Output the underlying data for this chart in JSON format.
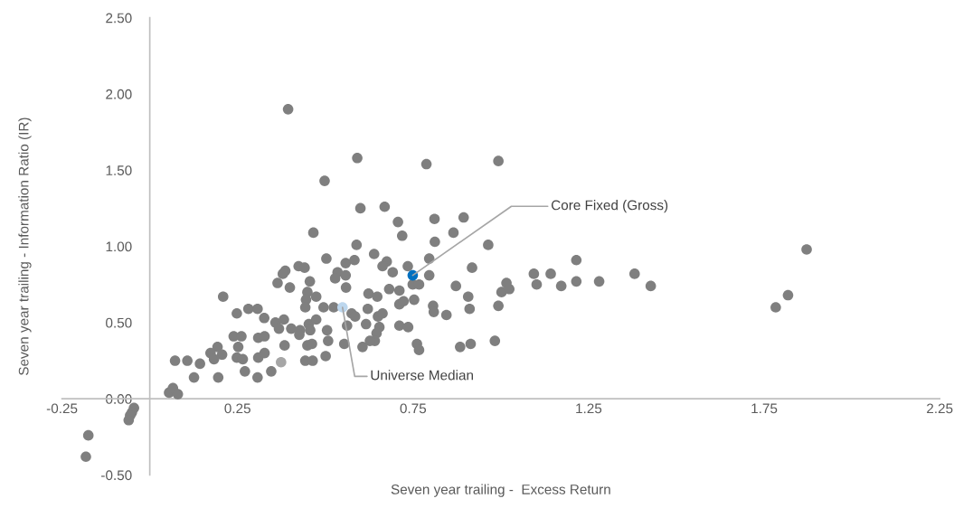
{
  "chart_data": {
    "type": "scatter",
    "xlabel": "Seven year trailing -  Excess Return",
    "ylabel": "Seven year trailing - Information Ratio (IR)",
    "marker": "circle",
    "xlim": [
      -0.25,
      2.25
    ],
    "ylim": [
      -0.5,
      2.5
    ],
    "xticks": [
      -0.25,
      0.25,
      0.75,
      1.25,
      1.75,
      2.25
    ],
    "yticks": [
      {
        "value": -0.5,
        "label": "-0.50"
      },
      {
        "value": 0,
        "label": "0.00"
      },
      {
        "value": 0.5,
        "label": "0.50"
      },
      {
        "value": 1,
        "label": "1.00"
      },
      {
        "value": 1.5,
        "label": "1.50"
      },
      {
        "value": 2,
        "label": "2.00"
      },
      {
        "value": 2.5,
        "label": "2.50"
      }
    ],
    "series": [
      {
        "color": "#7f7f7f",
        "x": [
          0.394,
          0.498,
          0.466,
          0.503,
          0.558,
          0.535,
          0.528,
          0.559,
          0.386,
          0.379,
          0.424,
          0.441,
          0.364,
          0.399,
          0.456,
          0.449,
          0.474,
          0.445,
          0.443,
          0.209,
          0.248,
          0.281,
          0.307,
          0.326,
          0.358,
          0.382,
          0.403,
          0.428,
          0.453,
          0.474,
          0.495,
          0.524,
          0.426,
          0.457,
          0.505,
          0.508,
          0.449,
          0.462,
          0.368,
          0.384,
          0.309,
          0.327,
          0.239,
          0.261,
          0.252,
          0.193,
          0.173,
          0.206,
          0.183,
          0.248,
          0.265,
          0.309,
          0.327,
          0.443,
          0.464,
          0.501,
          0.072,
          0.107,
          0.143,
          0.126,
          0.195,
          0.271,
          0.307,
          0.346,
          0.055,
          0.066,
          0.08,
          0.591,
          0.788,
          0.993,
          0.6,
          0.669,
          0.707,
          0.719,
          0.811,
          0.894,
          0.865,
          0.964,
          0.589,
          0.812,
          0.639,
          0.583,
          0.675,
          0.663,
          0.692,
          0.735,
          0.796,
          0.796,
          0.918,
          0.749,
          0.767,
          0.558,
          0.623,
          0.648,
          0.682,
          0.711,
          0.711,
          0.723,
          0.753,
          0.872,
          0.907,
          0.911,
          0.993,
          1.002,
          1.016,
          1.024,
          1.094,
          1.102,
          0.807,
          0.809,
          0.845,
          0.621,
          0.575,
          0.585,
          0.562,
          0.616,
          0.65,
          0.663,
          0.654,
          0.646,
          0.641,
          0.627,
          0.711,
          0.736,
          0.554,
          0.606,
          0.761,
          0.767,
          0.884,
          0.914,
          0.983,
          1.142,
          1.215,
          1.172,
          1.215,
          1.28,
          1.381,
          1.427,
          1.871,
          1.818,
          1.783,
          -0.045,
          -0.051,
          -0.056,
          -0.06,
          -0.175,
          -0.182
        ],
        "values": [
          1.9,
          1.43,
          1.09,
          0.92,
          0.89,
          0.83,
          0.79,
          0.73,
          0.84,
          0.82,
          0.87,
          0.86,
          0.76,
          0.73,
          0.77,
          0.7,
          0.67,
          0.65,
          0.6,
          0.67,
          0.56,
          0.59,
          0.59,
          0.53,
          0.5,
          0.52,
          0.46,
          0.45,
          0.49,
          0.52,
          0.6,
          0.6,
          0.42,
          0.45,
          0.45,
          0.38,
          0.35,
          0.36,
          0.46,
          0.35,
          0.4,
          0.41,
          0.41,
          0.41,
          0.34,
          0.34,
          0.3,
          0.29,
          0.26,
          0.27,
          0.26,
          0.27,
          0.3,
          0.25,
          0.25,
          0.28,
          0.25,
          0.25,
          0.23,
          0.14,
          0.14,
          0.18,
          0.14,
          0.18,
          0.04,
          0.07,
          0.03,
          1.58,
          1.54,
          1.56,
          1.25,
          1.26,
          1.16,
          1.07,
          1.18,
          1.19,
          1.09,
          1.01,
          1.01,
          1.03,
          0.95,
          0.91,
          0.9,
          0.87,
          0.83,
          0.87,
          0.92,
          0.81,
          0.86,
          0.75,
          0.75,
          0.81,
          0.69,
          0.67,
          0.72,
          0.71,
          0.62,
          0.64,
          0.65,
          0.74,
          0.67,
          0.59,
          0.61,
          0.7,
          0.76,
          0.72,
          0.82,
          0.75,
          0.61,
          0.57,
          0.55,
          0.59,
          0.56,
          0.54,
          0.48,
          0.49,
          0.54,
          0.56,
          0.47,
          0.43,
          0.38,
          0.38,
          0.48,
          0.47,
          0.36,
          0.34,
          0.36,
          0.32,
          0.34,
          0.36,
          0.38,
          0.82,
          0.91,
          0.74,
          0.77,
          0.77,
          0.82,
          0.74,
          0.98,
          0.68,
          0.6,
          -0.06,
          -0.09,
          -0.11,
          -0.14,
          -0.24,
          -0.38
        ]
      },
      {
        "color": "#a6a6a6",
        "x": [
          0.374
        ],
        "values": [
          0.24
        ]
      },
      {
        "color": "#bdd7ee",
        "x": [
          0.549
        ],
        "values": [
          0.6
        ]
      },
      {
        "color": "#0070c0",
        "x": [
          0.749
        ],
        "values": [
          0.81
        ]
      }
    ],
    "annotations": [
      {
        "text": "Universe Median",
        "x": 0.549,
        "y": 0.6
      },
      {
        "text": "Core Fixed (Gross)",
        "x": 0.749,
        "y": 0.81
      }
    ]
  }
}
